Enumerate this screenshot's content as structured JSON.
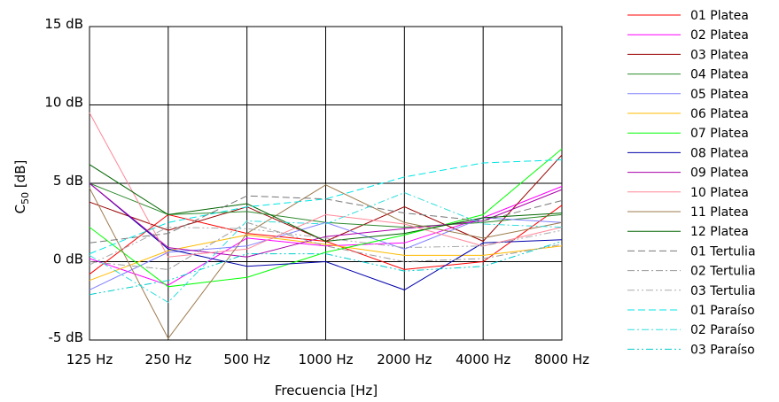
{
  "chart_data": {
    "type": "line",
    "xlabel": "Frecuencia [Hz]",
    "ylabel": "C50 [dB]",
    "categories": [
      "125 Hz",
      "250 Hz",
      "500 Hz",
      "1000 Hz",
      "2000 Hz",
      "4000 Hz",
      "8000 Hz"
    ],
    "ylim": [
      -5,
      15
    ],
    "y_ticks": [
      {
        "value": 15,
        "label": "15 dB"
      },
      {
        "value": 10,
        "label": "10 dB"
      },
      {
        "value": 5,
        "label": "5 dB"
      },
      {
        "value": 0,
        "label": "0 dB"
      },
      {
        "value": -5,
        "label": "-5 dB"
      }
    ],
    "grid": true,
    "legend_position": "right",
    "series": [
      {
        "name": "01 Platea",
        "color": "#ff0000",
        "dash": "solid",
        "values": [
          -0.8,
          3.0,
          1.8,
          1.3,
          -0.5,
          0.0,
          3.6
        ]
      },
      {
        "name": "02 Platea",
        "color": "#ff00ff",
        "dash": "solid",
        "values": [
          0.2,
          -1.5,
          1.5,
          1.0,
          1.2,
          2.8,
          4.8
        ]
      },
      {
        "name": "03 Platea",
        "color": "#990000",
        "dash": "solid",
        "values": [
          3.8,
          2.0,
          3.5,
          1.3,
          3.5,
          1.3,
          6.8
        ]
      },
      {
        "name": "04 Platea",
        "color": "#2e8b2e",
        "dash": "solid",
        "values": [
          5.0,
          3.0,
          3.2,
          2.5,
          2.2,
          2.5,
          3.0
        ]
      },
      {
        "name": "05 Platea",
        "color": "#7f7fff",
        "dash": "solid",
        "values": [
          -1.8,
          0.6,
          1.0,
          2.5,
          0.8,
          2.8,
          2.5
        ]
      },
      {
        "name": "06 Platea",
        "color": "#ffbb00",
        "dash": "solid",
        "values": [
          -1.2,
          0.7,
          1.7,
          1.1,
          0.4,
          0.4,
          1.0
        ]
      },
      {
        "name": "07 Platea",
        "color": "#00ff00",
        "dash": "solid",
        "values": [
          2.2,
          -1.6,
          -1.0,
          0.6,
          1.7,
          3.0,
          7.2
        ]
      },
      {
        "name": "08 Platea",
        "color": "#0000aa",
        "dash": "solid",
        "values": [
          5.0,
          0.8,
          -0.3,
          0.0,
          -1.8,
          1.2,
          1.4
        ]
      },
      {
        "name": "09 Platea",
        "color": "#aa00aa",
        "dash": "solid",
        "values": [
          5.0,
          0.9,
          0.3,
          1.6,
          2.1,
          2.6,
          4.6
        ]
      },
      {
        "name": "10 Platea",
        "color": "#ff8899",
        "dash": "solid",
        "values": [
          9.5,
          0.3,
          0.8,
          3.0,
          2.4,
          1.0,
          2.2
        ]
      },
      {
        "name": "11 Platea",
        "color": "#9c7a4d",
        "dash": "solid",
        "values": [
          4.7,
          -4.9,
          1.8,
          4.9,
          2.5,
          1.5,
          2.5
        ]
      },
      {
        "name": "12 Platea",
        "color": "#006400",
        "dash": "solid",
        "values": [
          6.2,
          3.0,
          3.7,
          1.3,
          1.8,
          2.8,
          3.1
        ]
      },
      {
        "name": "01 Tertulia",
        "color": "#777777",
        "dash": "dash",
        "values": [
          1.2,
          1.8,
          4.2,
          4.0,
          3.1,
          2.6,
          3.9
        ]
      },
      {
        "name": "02 Tertulia",
        "color": "#999999",
        "dash": "dashdot",
        "values": [
          0.0,
          -0.5,
          2.5,
          1.0,
          0.0,
          0.2,
          1.1
        ]
      },
      {
        "name": "03 Tertulia",
        "color": "#aaaaaa",
        "dash": "dashdotdot",
        "values": [
          -0.2,
          2.2,
          2.1,
          1.5,
          0.9,
          1.0,
          2.0
        ]
      },
      {
        "name": "01 Paraíso",
        "color": "#00e5e5",
        "dash": "dash",
        "values": [
          0.5,
          2.5,
          3.5,
          4.0,
          5.4,
          6.3,
          6.5
        ]
      },
      {
        "name": "02 Paraíso",
        "color": "#33dddd",
        "dash": "dashdot",
        "values": [
          0.4,
          -2.6,
          2.6,
          2.4,
          4.4,
          2.4,
          2.2
        ]
      },
      {
        "name": "03 Paraíso",
        "color": "#00cccc",
        "dash": "dashdotdot",
        "values": [
          -2.1,
          -1.2,
          0.5,
          0.5,
          -0.6,
          -0.3,
          1.3
        ]
      }
    ]
  }
}
